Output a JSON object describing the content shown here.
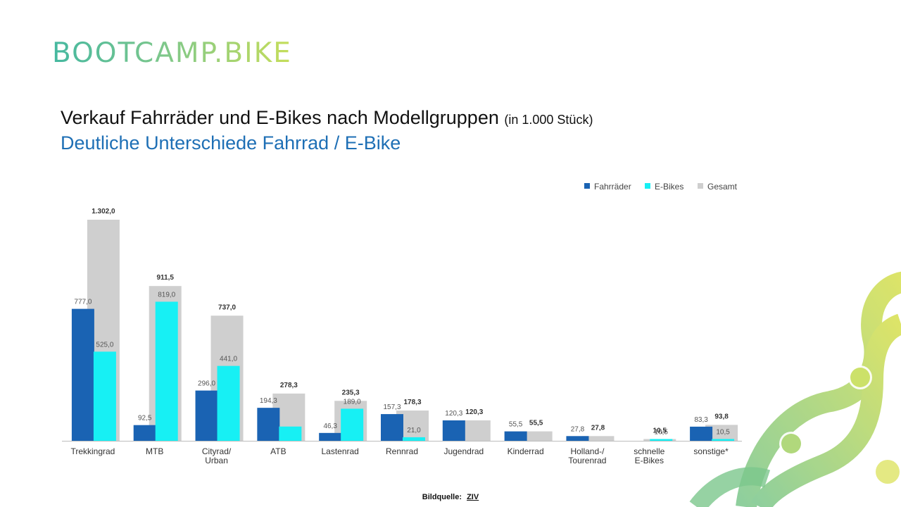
{
  "brand": {
    "logo_text": "BOOTCAMP.BIKE"
  },
  "title": "Verkauf Fahrräder und E-Bikes nach Modellgruppen",
  "title_unit": "(in 1.000 Stück)",
  "subtitle": "Deutliche Unterschiede Fahrrad / E-Bike",
  "credit": {
    "label": "Bildquelle:",
    "source": "ZIV"
  },
  "colors": {
    "fahrraeder": "#1a63b3",
    "ebikes": "#17f0f4",
    "gesamt": "#cfcfcf",
    "subtitle": "#1e6fb5"
  },
  "chart_data": {
    "type": "bar",
    "categories": [
      [
        "Trekkingrad"
      ],
      [
        "MTB"
      ],
      [
        "Cityrad/",
        "Urban"
      ],
      [
        "ATB"
      ],
      [
        "Lastenrad"
      ],
      [
        "Rennrad"
      ],
      [
        "Jugendrad"
      ],
      [
        "Kinderrad"
      ],
      [
        "Holland-/",
        "Tourenrad"
      ],
      [
        "schnelle",
        "E-Bikes"
      ],
      [
        "sonstige*"
      ]
    ],
    "series": [
      {
        "name": "Fahrräder",
        "values": [
          777.0,
          92.5,
          296.0,
          194.3,
          46.3,
          157.3,
          120.3,
          55.5,
          27.8,
          null,
          83.3
        ],
        "labels": [
          "777,0",
          "92,5",
          "296,0",
          "194,3",
          "46,3",
          "157,3",
          "120,3",
          "55,5",
          "27,8",
          "",
          "83,3"
        ]
      },
      {
        "name": "E-Bikes",
        "values": [
          525.0,
          819.0,
          441.0,
          84.0,
          189.0,
          21.0,
          null,
          null,
          null,
          10.5,
          10.5
        ],
        "labels": [
          "525,0",
          "819,0",
          "441,0",
          "",
          "189,0",
          "21,0",
          "",
          "",
          "",
          "10,5",
          "10,5"
        ]
      },
      {
        "name": "Gesamt",
        "values": [
          1302.0,
          911.5,
          737.0,
          278.3,
          235.3,
          178.3,
          120.3,
          55.5,
          27.8,
          10.5,
          93.8
        ],
        "labels": [
          "1.302,0",
          "911,5",
          "737,0",
          "278,3",
          "235,3",
          "178,3",
          "120,3",
          "55,5",
          "27,8",
          "10,5",
          "93,8"
        ]
      }
    ],
    "legend_position": "top-right",
    "ylim": [
      0,
      1302.0
    ],
    "grid": false
  }
}
